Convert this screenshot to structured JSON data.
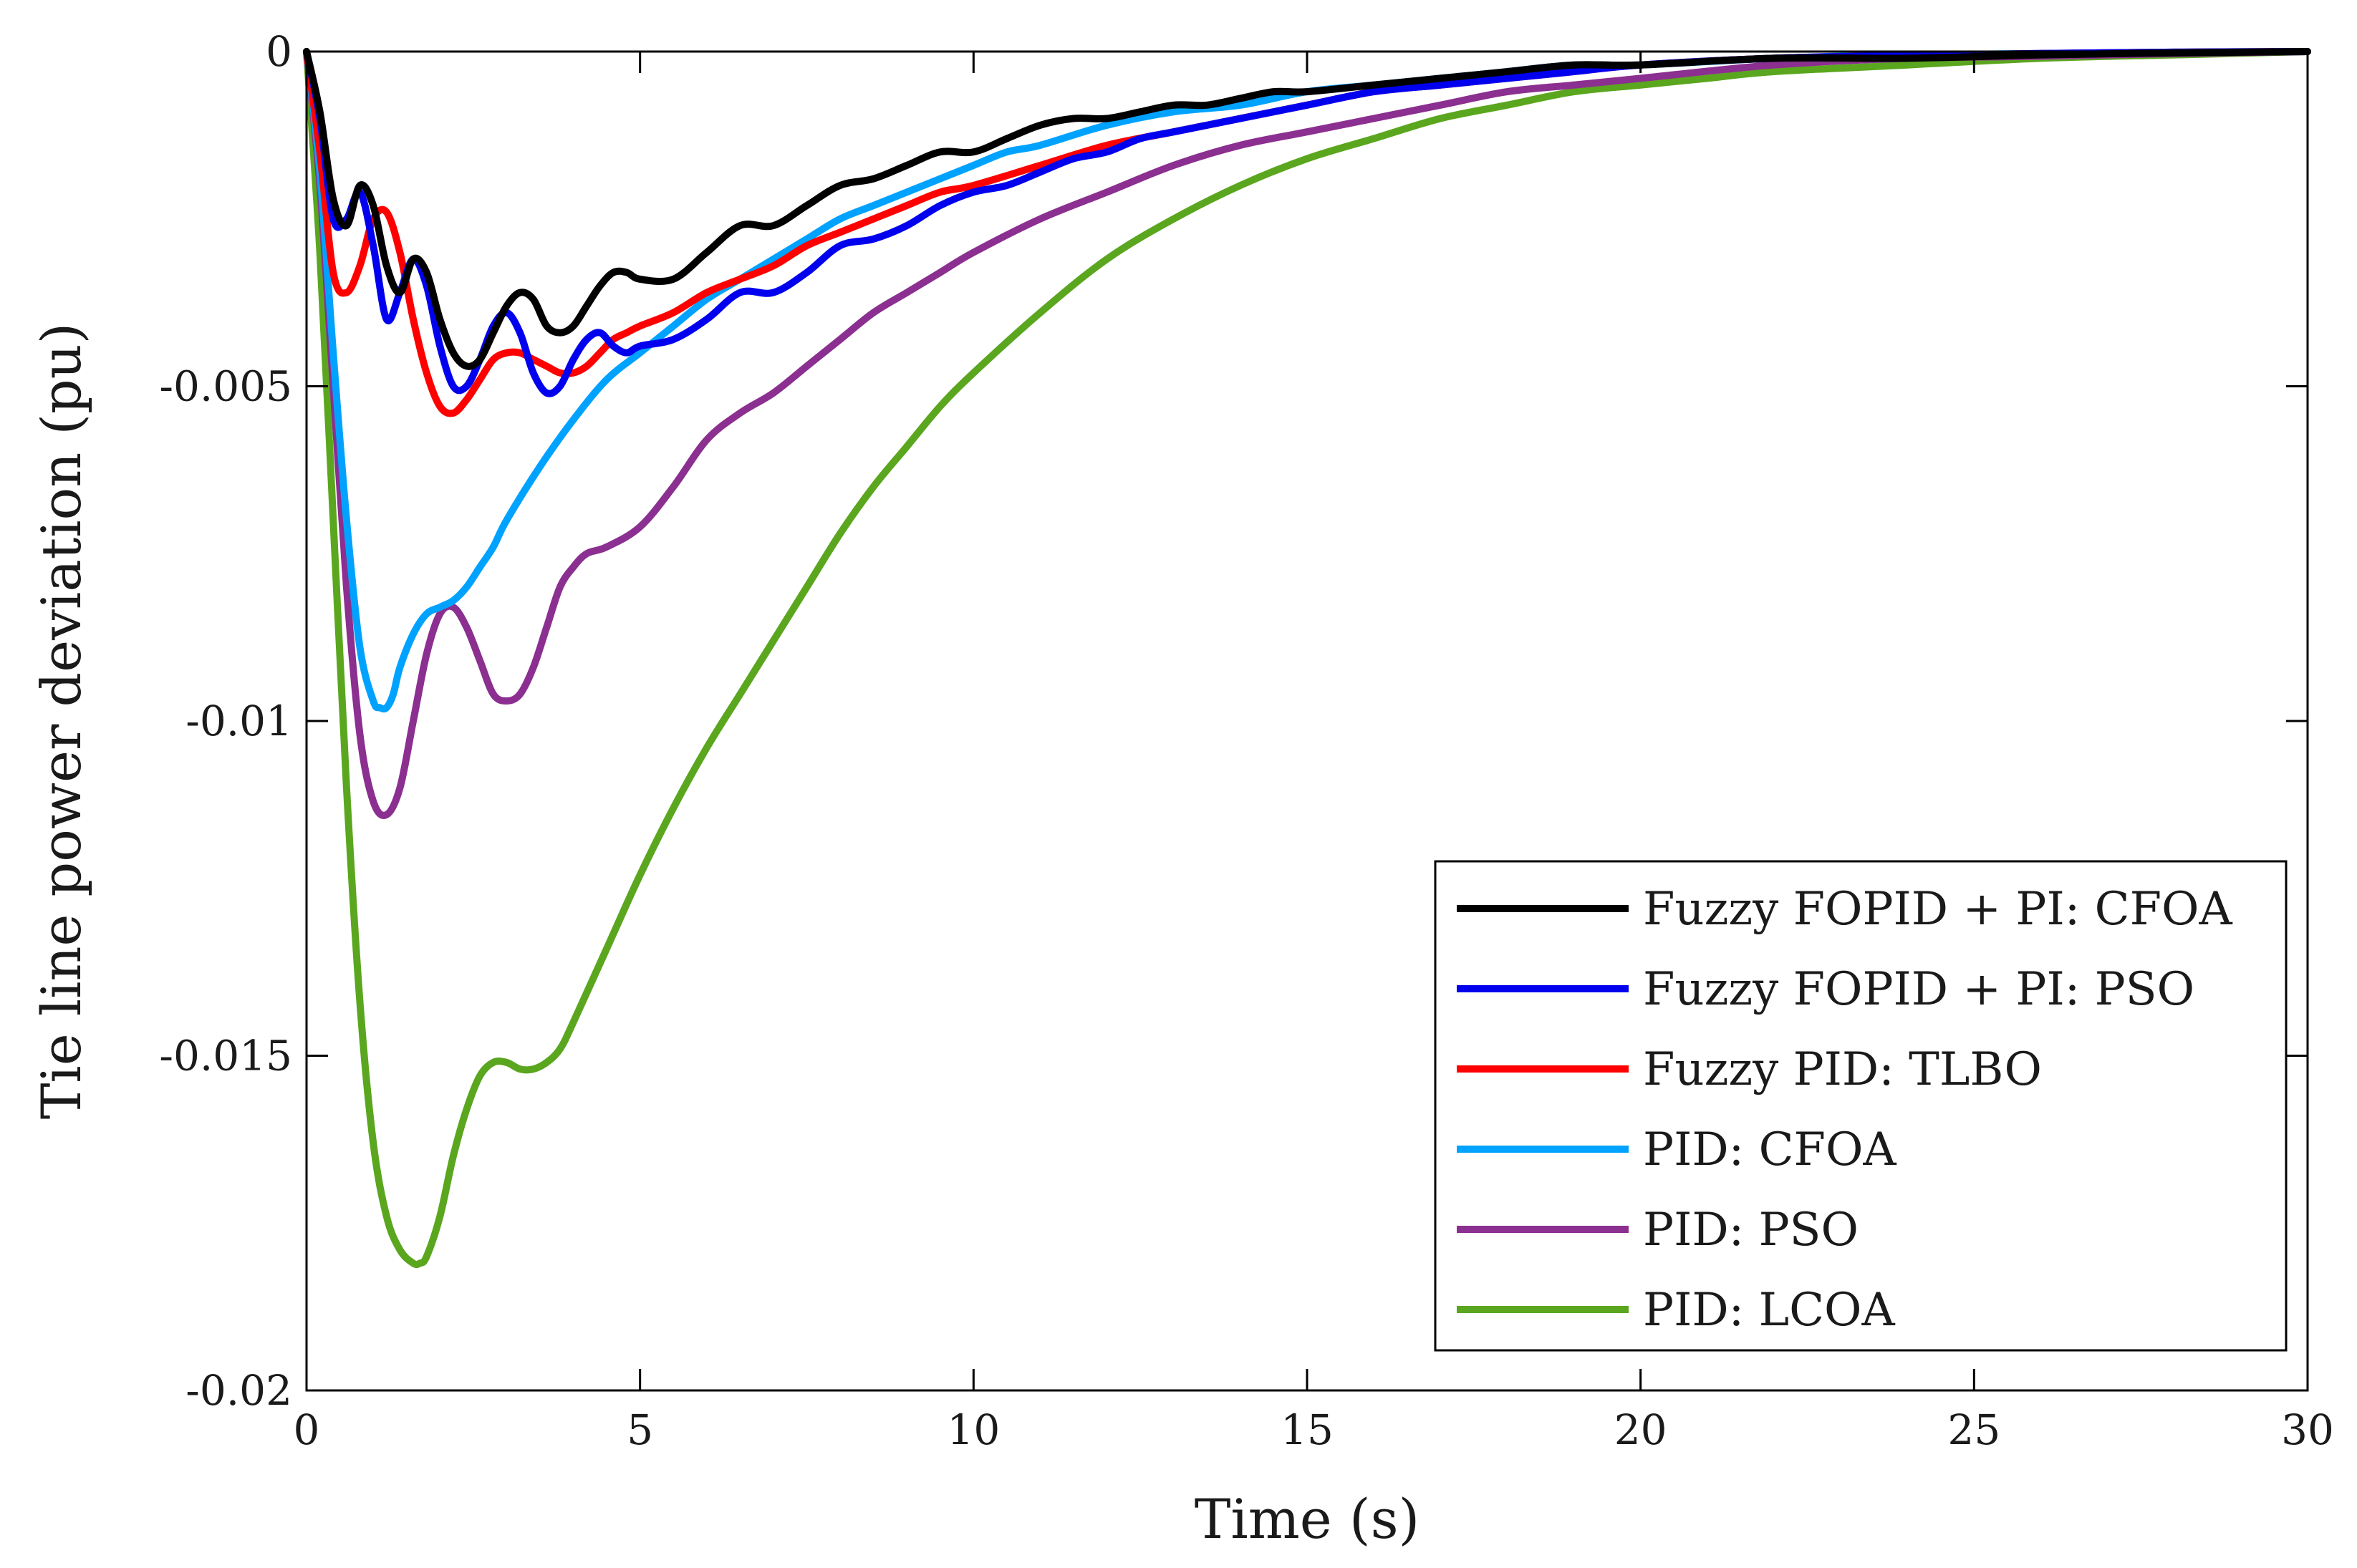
{
  "chart_data": {
    "type": "line",
    "title": "",
    "xlabel": "Time (s)",
    "ylabel": "Tie line power deviation (pu)",
    "xlim": [
      0,
      30
    ],
    "ylim": [
      -0.02,
      0
    ],
    "xticks": [
      0,
      5,
      10,
      15,
      20,
      25,
      30
    ],
    "xtick_labels": [
      "0",
      "5",
      "10",
      "15",
      "20",
      "25",
      "30"
    ],
    "yticks": [
      0,
      -0.005,
      -0.01,
      -0.015,
      -0.02
    ],
    "ytick_labels": [
      "0",
      "-0.005",
      "-0.01",
      "-0.015",
      "-0.02"
    ],
    "grid": false,
    "legend_position": "bottom-right",
    "series": [
      {
        "name": "Fuzzy FOPID + PI: CFOA",
        "color": "#000000",
        "x": [
          0,
          0.2,
          0.4,
          0.6,
          0.8,
          1.0,
          1.2,
          1.4,
          1.6,
          1.8,
          2.0,
          2.2,
          2.4,
          2.6,
          2.8,
          3.0,
          3.2,
          3.4,
          3.6,
          3.8,
          4.0,
          4.2,
          4.4,
          4.6,
          4.8,
          5.0,
          5.5,
          6.0,
          6.5,
          7.0,
          7.5,
          8.0,
          8.5,
          9.0,
          9.5,
          10,
          10.5,
          11,
          11.5,
          12,
          12.5,
          13,
          13.5,
          14,
          14.5,
          15,
          16,
          17,
          18,
          19,
          20,
          22,
          24,
          26,
          28,
          30
        ],
        "y": [
          0,
          -0.0009,
          -0.0022,
          -0.0026,
          -0.002,
          -0.0023,
          -0.0032,
          -0.0036,
          -0.0031,
          -0.0033,
          -0.004,
          -0.0045,
          -0.0047,
          -0.0046,
          -0.0042,
          -0.0038,
          -0.0036,
          -0.0037,
          -0.0041,
          -0.0042,
          -0.0041,
          -0.0038,
          -0.0035,
          -0.0033,
          -0.0033,
          -0.0034,
          -0.0034,
          -0.003,
          -0.0026,
          -0.0026,
          -0.0023,
          -0.002,
          -0.0019,
          -0.0017,
          -0.0015,
          -0.0015,
          -0.0013,
          -0.0011,
          -0.001,
          -0.001,
          -0.0009,
          -0.0008,
          -0.0008,
          -0.0007,
          -0.0006,
          -0.0006,
          -0.0005,
          -0.0004,
          -0.0003,
          -0.0002,
          -0.0002,
          -0.0001,
          -0.0001,
          -5e-05,
          -2e-05,
          0
        ]
      },
      {
        "name": "Fuzzy FOPID + PI: PSO",
        "color": "#0000ee",
        "x": [
          0,
          0.2,
          0.4,
          0.6,
          0.8,
          1.0,
          1.2,
          1.4,
          1.6,
          1.8,
          2.0,
          2.2,
          2.4,
          2.6,
          2.8,
          3.0,
          3.2,
          3.4,
          3.6,
          3.8,
          4.0,
          4.2,
          4.4,
          4.6,
          4.8,
          5.0,
          5.5,
          6.0,
          6.5,
          7.0,
          7.5,
          8.0,
          8.5,
          9.0,
          9.5,
          10,
          10.5,
          11,
          11.5,
          12,
          12.5,
          13,
          14,
          15,
          16,
          17,
          18,
          19,
          20,
          22,
          24,
          26,
          28,
          30
        ],
        "y": [
          0,
          -0.001,
          -0.0025,
          -0.0025,
          -0.0021,
          -0.0029,
          -0.004,
          -0.0036,
          -0.0031,
          -0.0035,
          -0.0044,
          -0.005,
          -0.005,
          -0.0046,
          -0.0041,
          -0.0039,
          -0.0042,
          -0.0048,
          -0.0051,
          -0.005,
          -0.0046,
          -0.0043,
          -0.0042,
          -0.0044,
          -0.0045,
          -0.0044,
          -0.0043,
          -0.004,
          -0.0036,
          -0.0036,
          -0.0033,
          -0.0029,
          -0.0028,
          -0.0026,
          -0.0023,
          -0.0021,
          -0.002,
          -0.0018,
          -0.0016,
          -0.0015,
          -0.0013,
          -0.0012,
          -0.001,
          -0.0008,
          -0.0006,
          -0.0005,
          -0.0004,
          -0.0003,
          -0.0002,
          -0.0001,
          -6e-05,
          -3e-05,
          -1e-05,
          0
        ]
      },
      {
        "name": "Fuzzy PID: TLBO",
        "color": "#ff0000",
        "x": [
          0,
          0.2,
          0.4,
          0.6,
          0.8,
          1.0,
          1.2,
          1.4,
          1.6,
          1.8,
          2.0,
          2.2,
          2.4,
          2.6,
          2.8,
          3.0,
          3.2,
          3.4,
          3.6,
          3.8,
          4.0,
          4.2,
          4.4,
          4.6,
          4.8,
          5.0,
          5.5,
          6.0,
          6.5,
          7.0,
          7.5,
          8.0,
          8.5,
          9.0,
          9.5,
          10,
          11,
          12,
          13,
          14,
          15,
          16,
          17,
          18,
          19,
          20,
          22,
          24,
          26,
          28,
          30
        ],
        "y": [
          0,
          -0.0015,
          -0.0033,
          -0.0036,
          -0.0032,
          -0.0025,
          -0.0024,
          -0.003,
          -0.004,
          -0.0048,
          -0.0053,
          -0.0054,
          -0.0052,
          -0.0049,
          -0.0046,
          -0.0045,
          -0.0045,
          -0.0046,
          -0.0047,
          -0.0048,
          -0.0048,
          -0.0047,
          -0.0045,
          -0.0043,
          -0.0042,
          -0.0041,
          -0.0039,
          -0.0036,
          -0.0034,
          -0.0032,
          -0.0029,
          -0.0027,
          -0.0025,
          -0.0023,
          -0.0021,
          -0.002,
          -0.0017,
          -0.0014,
          -0.0012,
          -0.001,
          -0.0008,
          -0.0006,
          -0.0005,
          -0.0004,
          -0.0003,
          -0.0002,
          -0.0001,
          -6e-05,
          -3e-05,
          -1e-05,
          0
        ]
      },
      {
        "name": "PID: CFOA",
        "color": "#00a2ff",
        "x": [
          0,
          0.2,
          0.4,
          0.6,
          0.8,
          1.0,
          1.1,
          1.2,
          1.3,
          1.4,
          1.6,
          1.8,
          2.0,
          2.2,
          2.4,
          2.6,
          2.8,
          3.0,
          3.5,
          4.0,
          4.5,
          5.0,
          5.5,
          6.0,
          6.5,
          7.0,
          7.5,
          8.0,
          8.5,
          9.0,
          9.5,
          10,
          10.5,
          11,
          12,
          13,
          14,
          15,
          16,
          17,
          18,
          19,
          20,
          22,
          24,
          26,
          28,
          30
        ],
        "y": [
          0,
          -0.0018,
          -0.0045,
          -0.007,
          -0.0089,
          -0.0097,
          -0.0098,
          -0.0098,
          -0.0096,
          -0.0092,
          -0.0087,
          -0.0084,
          -0.0083,
          -0.0082,
          -0.008,
          -0.0077,
          -0.0074,
          -0.007,
          -0.0062,
          -0.0055,
          -0.0049,
          -0.0045,
          -0.0041,
          -0.0037,
          -0.0034,
          -0.0031,
          -0.0028,
          -0.0025,
          -0.0023,
          -0.0021,
          -0.0019,
          -0.0017,
          -0.0015,
          -0.0014,
          -0.0011,
          -0.0009,
          -0.0008,
          -0.0006,
          -0.0005,
          -0.0004,
          -0.0003,
          -0.0002,
          -0.0002,
          -0.0001,
          -5e-05,
          -3e-05,
          -1e-05,
          0
        ]
      },
      {
        "name": "PID: PSO",
        "color": "#8b2f90",
        "x": [
          0,
          0.2,
          0.4,
          0.6,
          0.8,
          1.0,
          1.2,
          1.4,
          1.6,
          1.8,
          2.0,
          2.2,
          2.4,
          2.6,
          2.8,
          3.0,
          3.2,
          3.4,
          3.6,
          3.8,
          4.0,
          4.2,
          4.5,
          5.0,
          5.5,
          6.0,
          6.5,
          7.0,
          7.5,
          8.0,
          8.5,
          9.0,
          9.5,
          10,
          11,
          12,
          13,
          14,
          15,
          16,
          17,
          18,
          19,
          20,
          22,
          24,
          26,
          28,
          30
        ],
        "y": [
          0,
          -0.002,
          -0.005,
          -0.008,
          -0.0102,
          -0.0112,
          -0.0114,
          -0.011,
          -0.01,
          -0.009,
          -0.0084,
          -0.0083,
          -0.0086,
          -0.0091,
          -0.0096,
          -0.0097,
          -0.0096,
          -0.0092,
          -0.0086,
          -0.008,
          -0.0077,
          -0.0075,
          -0.0074,
          -0.0071,
          -0.0065,
          -0.0058,
          -0.0054,
          -0.0051,
          -0.0047,
          -0.0043,
          -0.0039,
          -0.0036,
          -0.0033,
          -0.003,
          -0.0025,
          -0.0021,
          -0.0017,
          -0.0014,
          -0.0012,
          -0.001,
          -0.0008,
          -0.0006,
          -0.0005,
          -0.0004,
          -0.0002,
          -0.0001,
          -7e-05,
          -3e-05,
          0
        ]
      },
      {
        "name": "PID: LCOA",
        "color": "#5aa61e",
        "x": [
          0,
          0.2,
          0.4,
          0.6,
          0.8,
          1.0,
          1.2,
          1.4,
          1.6,
          1.7,
          1.8,
          2.0,
          2.2,
          2.4,
          2.6,
          2.8,
          3.0,
          3.2,
          3.4,
          3.6,
          3.8,
          4.0,
          4.5,
          5.0,
          5.5,
          6.0,
          6.5,
          7.0,
          7.5,
          8.0,
          8.5,
          9.0,
          9.5,
          10,
          11,
          12,
          13,
          14,
          15,
          16,
          17,
          18,
          19,
          20,
          21,
          22,
          24,
          26,
          28,
          30
        ],
        "y": [
          0,
          -0.003,
          -0.007,
          -0.011,
          -0.0142,
          -0.0163,
          -0.0174,
          -0.0179,
          -0.0181,
          -0.0181,
          -0.018,
          -0.0174,
          -0.0165,
          -0.0158,
          -0.0153,
          -0.0151,
          -0.0151,
          -0.0152,
          -0.0152,
          -0.0151,
          -0.0149,
          -0.0145,
          -0.0134,
          -0.0123,
          -0.0113,
          -0.0104,
          -0.0096,
          -0.0088,
          -0.008,
          -0.0072,
          -0.0065,
          -0.0059,
          -0.0053,
          -0.0048,
          -0.0039,
          -0.0031,
          -0.0025,
          -0.002,
          -0.0016,
          -0.0013,
          -0.001,
          -0.0008,
          -0.0006,
          -0.0005,
          -0.0004,
          -0.0003,
          -0.0002,
          -0.0001,
          -5e-05,
          0
        ]
      }
    ]
  }
}
